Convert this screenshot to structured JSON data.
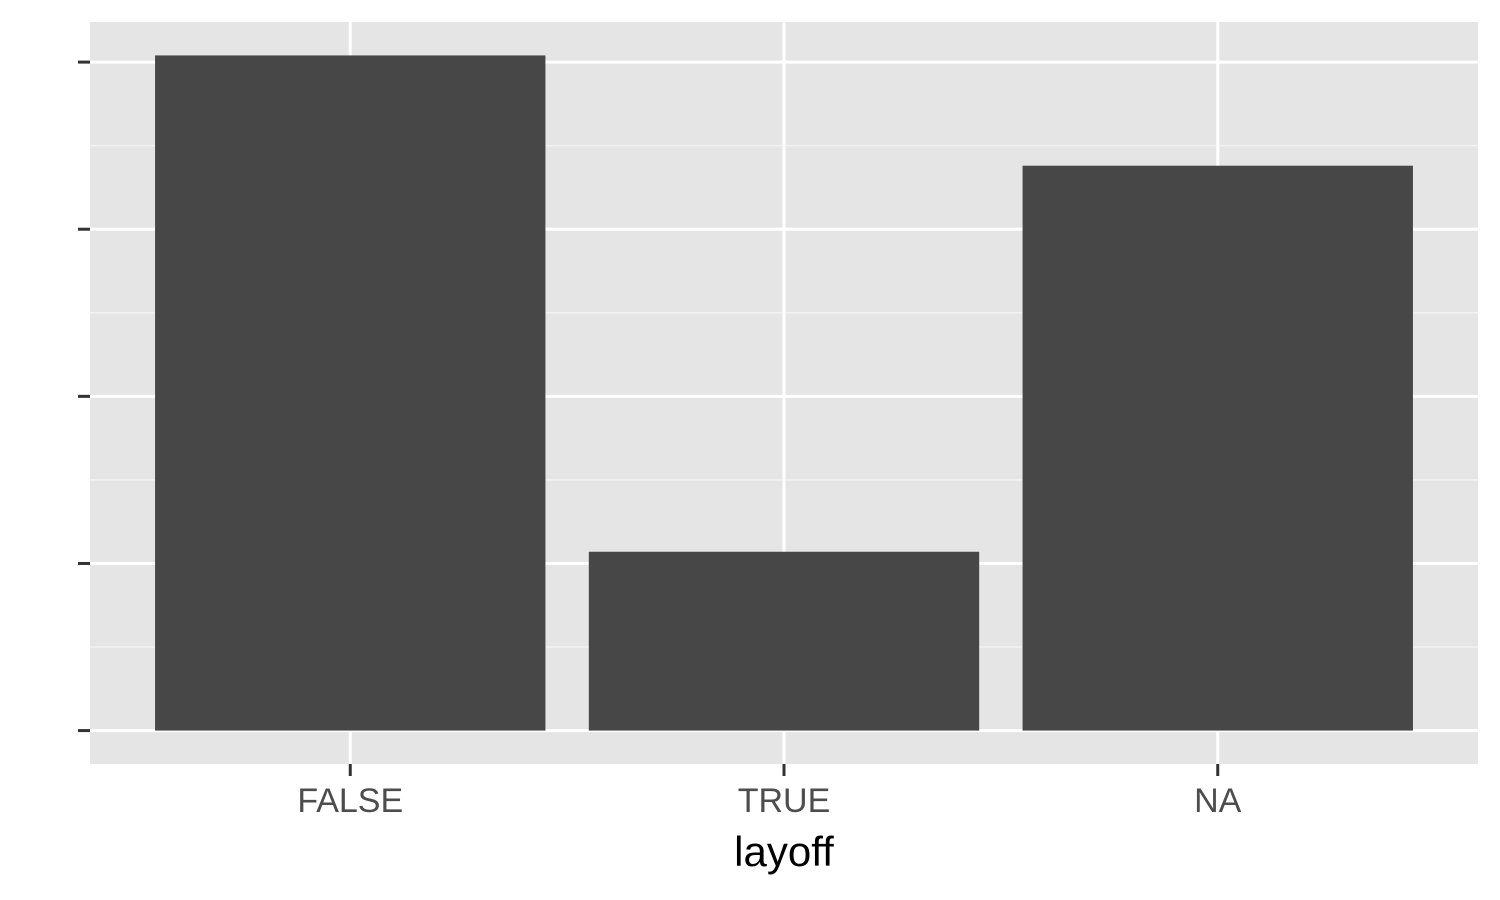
{
  "chart_data": {
    "type": "bar",
    "title": "",
    "xlabel": "layoff",
    "ylabel": "",
    "categories": [
      "FALSE",
      "TRUE",
      "NA"
    ],
    "values": [
      4.04,
      1.07,
      3.38
    ],
    "ylim": [
      -0.2,
      4.24
    ],
    "y_ticks": [
      0,
      1,
      2,
      3,
      4
    ],
    "y_tick_labels_shown": false,
    "grid": true,
    "legend": "none",
    "colors": {
      "panel": "#e5e5e5",
      "bar": "#474747",
      "grid": "#ffffff"
    }
  }
}
